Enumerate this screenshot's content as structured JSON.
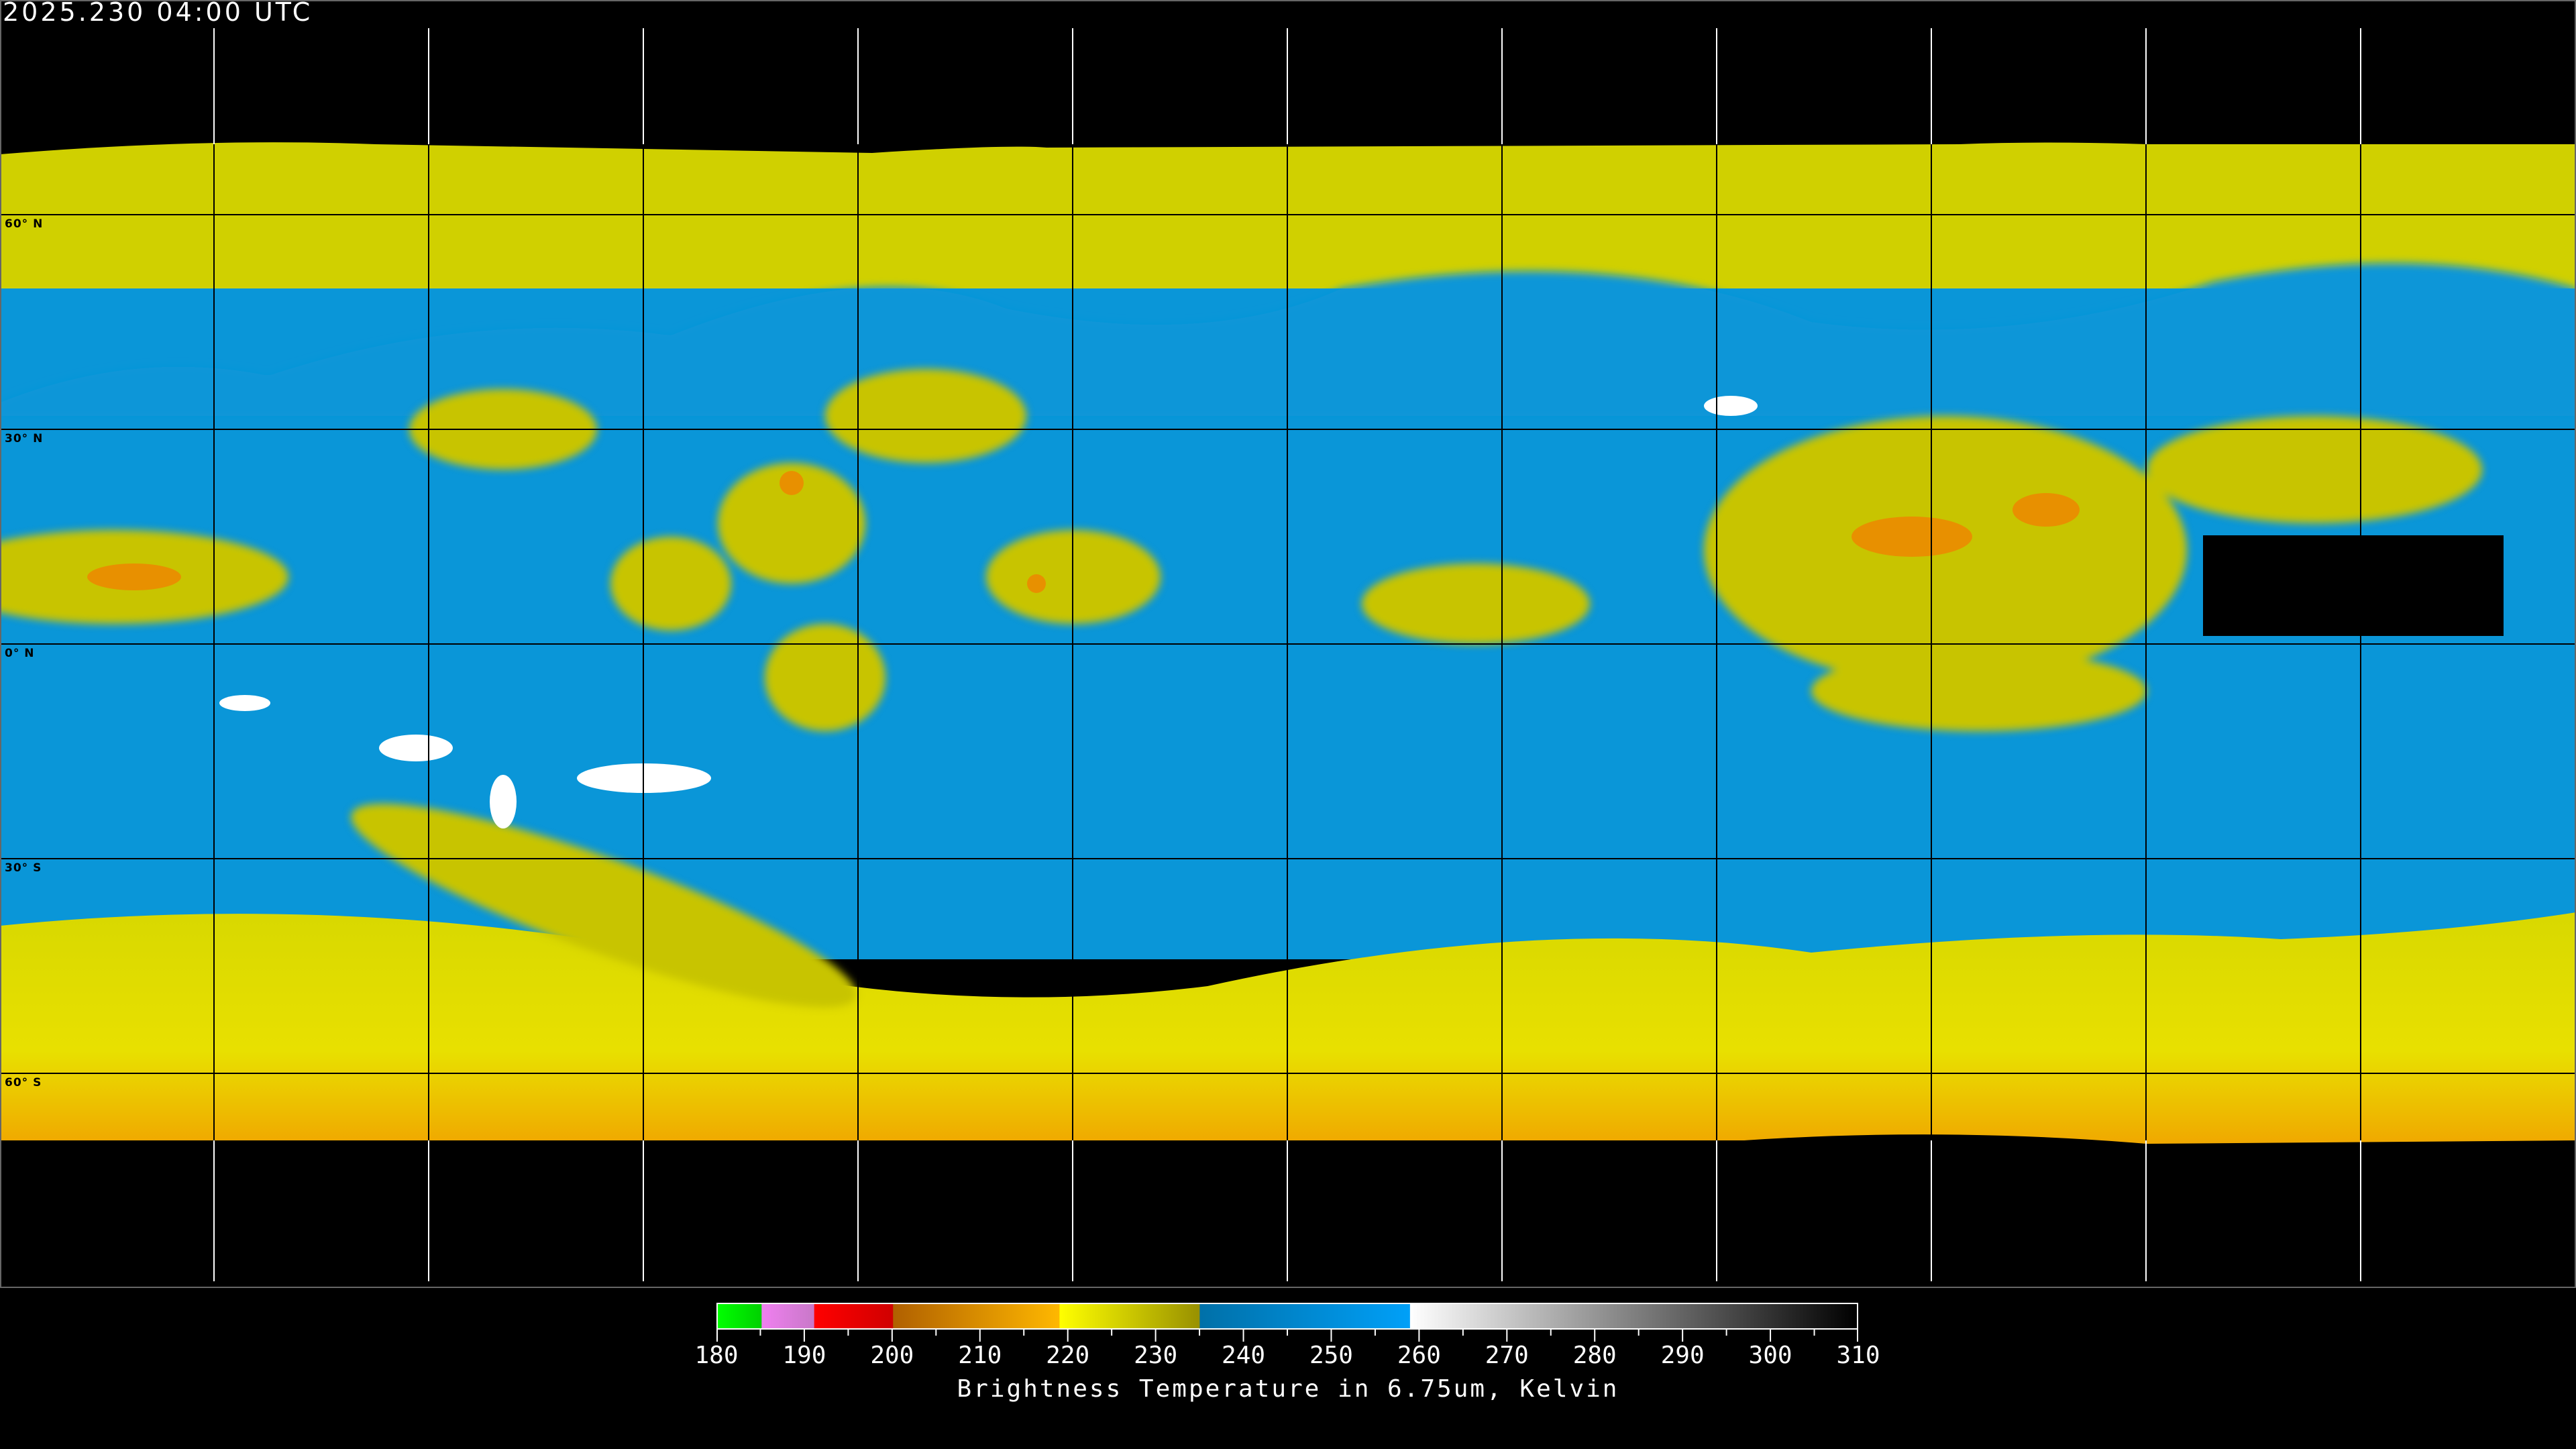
{
  "timestamp": "2025.230 04:00 UTC",
  "map": {
    "projection": "equirectangular",
    "latitude_labels": [
      "60° N",
      "30° N",
      "0° N",
      "30° S",
      "60° S"
    ],
    "colors": {
      "moist_blue": "#0a96d8",
      "dry_yellow": "#d8d800",
      "olive": "#b4b400",
      "cold_orange": "#f0a800",
      "deep_red": "#d82000",
      "white_warm": "#ffffff",
      "background": "#000000"
    },
    "coastline_color_over_data": "#000000",
    "coastline_color_over_background": "#ffffff"
  },
  "colorbar": {
    "min": 180,
    "max": 310,
    "tick_labels": [
      "180",
      "190",
      "200",
      "210",
      "220",
      "230",
      "240",
      "250",
      "260",
      "270",
      "280",
      "290",
      "300",
      "310"
    ],
    "segments": [
      {
        "from": 180,
        "to": 185,
        "start": "#00ff00",
        "end": "#00d000"
      },
      {
        "from": 185,
        "to": 191,
        "start": "#f080f0",
        "end": "#c878c8"
      },
      {
        "from": 191,
        "to": 200,
        "start": "#ff0000",
        "end": "#d00000"
      },
      {
        "from": 200,
        "to": 219,
        "start": "#b06000",
        "end": "#ffb800"
      },
      {
        "from": 219,
        "to": 235,
        "start": "#ffff00",
        "end": "#989000"
      },
      {
        "from": 235,
        "to": 259,
        "start": "#0070a8",
        "end": "#00a0f8"
      },
      {
        "from": 259,
        "to": 310,
        "start": "#ffffff",
        "end": "#000000"
      }
    ],
    "title": "Brightness Temperature in 6.75um, Kelvin"
  }
}
